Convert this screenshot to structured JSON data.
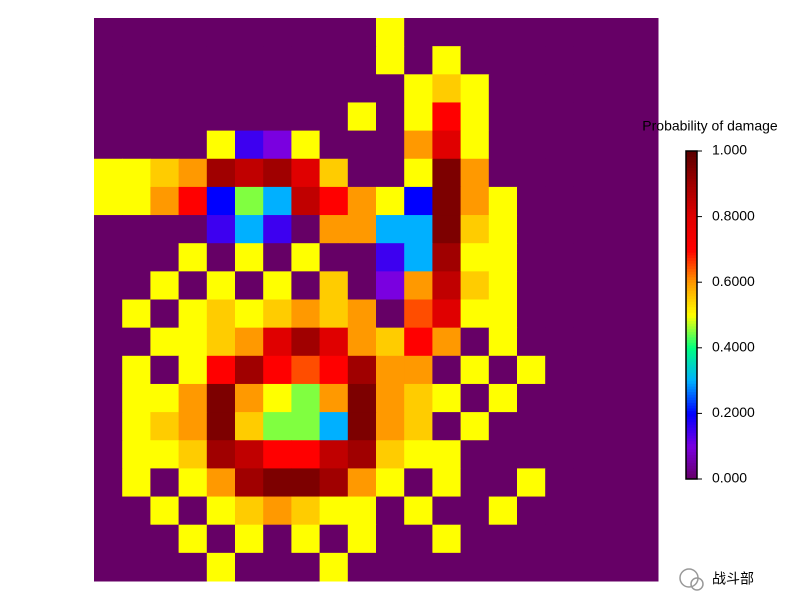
{
  "chart_data": {
    "type": "heatmap",
    "colorbar_title": "Probability of damage",
    "zlim": [
      0,
      1
    ],
    "zticks": [
      {
        "value": 0,
        "label": "0.000"
      },
      {
        "value": 0.2,
        "label": "0.2000"
      },
      {
        "value": 0.4,
        "label": "0.4000"
      },
      {
        "value": 0.6,
        "label": "0.6000"
      },
      {
        "value": 0.8,
        "label": "0.8000"
      },
      {
        "value": 1,
        "label": "1.000"
      }
    ],
    "colorscale": [
      "#660066",
      "#7a00e0",
      "#0000ff",
      "#00b0ff",
      "#00ff80",
      "#ffff00",
      "#ff9900",
      "#ff0000",
      "#e00000",
      "#a00000",
      "#5a0000"
    ],
    "z": [
      [
        0,
        0,
        0,
        0,
        0,
        0,
        0,
        0,
        0,
        0,
        0.5,
        0,
        0,
        0,
        0,
        0,
        0,
        0,
        0,
        0
      ],
      [
        0,
        0,
        0,
        0,
        0,
        0,
        0,
        0,
        0,
        0,
        0.5,
        0,
        0.5,
        0,
        0,
        0,
        0,
        0,
        0,
        0
      ],
      [
        0,
        0,
        0,
        0,
        0,
        0,
        0,
        0,
        0,
        0,
        0,
        0.5,
        0.55,
        0.5,
        0,
        0,
        0,
        0,
        0,
        0
      ],
      [
        0,
        0,
        0,
        0,
        0,
        0,
        0,
        0,
        0,
        0.5,
        0,
        0.5,
        0.7,
        0.5,
        0,
        0,
        0,
        0,
        0,
        0
      ],
      [
        0,
        0,
        0,
        0,
        0.5,
        0.15,
        0.1,
        0.5,
        0,
        0,
        0,
        0.6,
        0.8,
        0.5,
        0,
        0,
        0,
        0,
        0,
        0
      ],
      [
        0.5,
        0.5,
        0.55,
        0.6,
        0.9,
        0.85,
        0.9,
        0.8,
        0.55,
        0,
        0,
        0.5,
        0.95,
        0.6,
        0,
        0,
        0,
        0,
        0,
        0
      ],
      [
        0.5,
        0.5,
        0.6,
        0.7,
        0.2,
        0.45,
        0.3,
        0.85,
        0.7,
        0.6,
        0.5,
        0.2,
        0.95,
        0.6,
        0.5,
        0,
        0,
        0,
        0,
        0
      ],
      [
        0,
        0,
        0,
        0,
        0.15,
        0.3,
        0.15,
        0,
        0.6,
        0.6,
        0.3,
        0.3,
        0.95,
        0.55,
        0.5,
        0,
        0,
        0,
        0,
        0
      ],
      [
        0,
        0,
        0,
        0.5,
        0,
        0.5,
        0,
        0.5,
        0,
        0,
        0.15,
        0.3,
        0.9,
        0.5,
        0.5,
        0,
        0,
        0,
        0,
        0
      ],
      [
        0,
        0,
        0.5,
        0,
        0.5,
        0,
        0.5,
        0,
        0.55,
        0,
        0.1,
        0.6,
        0.85,
        0.55,
        0.5,
        0,
        0,
        0,
        0,
        0
      ],
      [
        0,
        0.5,
        0,
        0.5,
        0.55,
        0.5,
        0.55,
        0.6,
        0.55,
        0.6,
        0,
        0.65,
        0.8,
        0.5,
        0.5,
        0,
        0,
        0,
        0,
        0
      ],
      [
        0,
        0,
        0.5,
        0.5,
        0.55,
        0.6,
        0.8,
        0.9,
        0.8,
        0.6,
        0.55,
        0.7,
        0.6,
        0,
        0.5,
        0,
        0,
        0,
        0,
        0
      ],
      [
        0,
        0.5,
        0,
        0.5,
        0.7,
        0.9,
        0.7,
        0.65,
        0.7,
        0.9,
        0.6,
        0.6,
        0,
        0.5,
        0,
        0.5,
        0,
        0,
        0,
        0
      ],
      [
        0,
        0.5,
        0.5,
        0.6,
        0.95,
        0.6,
        0.5,
        0.45,
        0.6,
        0.95,
        0.6,
        0.55,
        0.5,
        0,
        0.5,
        0,
        0,
        0,
        0,
        0
      ],
      [
        0,
        0.5,
        0.55,
        0.6,
        0.95,
        0.55,
        0.45,
        0.45,
        0.3,
        0.95,
        0.6,
        0.55,
        0,
        0.5,
        0,
        0,
        0,
        0,
        0,
        0
      ],
      [
        0,
        0.5,
        0.5,
        0.55,
        0.9,
        0.85,
        0.7,
        0.7,
        0.85,
        0.9,
        0.55,
        0.5,
        0.5,
        0,
        0,
        0,
        0,
        0,
        0,
        0
      ],
      [
        0,
        0.5,
        0,
        0.5,
        0.6,
        0.9,
        0.95,
        0.95,
        0.9,
        0.6,
        0.5,
        0,
        0.5,
        0,
        0,
        0.5,
        0,
        0,
        0,
        0
      ],
      [
        0,
        0,
        0.5,
        0,
        0.5,
        0.55,
        0.6,
        0.55,
        0.5,
        0.5,
        0,
        0.5,
        0,
        0,
        0.5,
        0,
        0,
        0,
        0,
        0
      ],
      [
        0,
        0,
        0,
        0.5,
        0,
        0.5,
        0,
        0.5,
        0,
        0.5,
        0,
        0,
        0.5,
        0,
        0,
        0,
        0,
        0,
        0,
        0
      ],
      [
        0,
        0,
        0,
        0,
        0.5,
        0,
        0,
        0,
        0.5,
        0,
        0,
        0,
        0,
        0,
        0,
        0,
        0,
        0,
        0,
        0
      ]
    ]
  },
  "watermark": "战斗部"
}
